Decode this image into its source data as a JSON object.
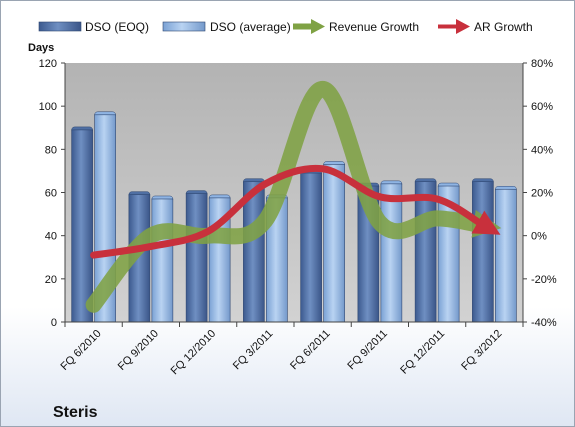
{
  "chart_data": {
    "type": "bar",
    "company": "Steris",
    "ylabel": "Days",
    "categories": [
      "FQ 6/2010",
      "FQ 9/2010",
      "FQ 12/2010",
      "FQ 3/2011",
      "FQ 6/2011",
      "FQ 9/2011",
      "FQ 12/2011",
      "FQ 3/2012"
    ],
    "ylim": [
      0,
      120
    ],
    "yticks": [
      0,
      20,
      40,
      60,
      80,
      100,
      120
    ],
    "y2lim": [
      -40,
      80
    ],
    "y2ticks": [
      "-40%",
      "-20%",
      "0%",
      "20%",
      "40%",
      "60%",
      "80%"
    ],
    "bar_series": [
      {
        "name": "DSO (EOQ)",
        "color": "#4f6fa3",
        "values": [
          89,
          59,
          59.5,
          65,
          69,
          63,
          65,
          65
        ]
      },
      {
        "name": "DSO (average)",
        "color": "#8fb4e3",
        "values": [
          96,
          57,
          57.5,
          57.5,
          73,
          64,
          63,
          61.5
        ]
      }
    ],
    "line_series": [
      {
        "name": "Revenue Growth",
        "color": "#7fa244",
        "values": [
          -32,
          0,
          0,
          7,
          68,
          6,
          8,
          4
        ]
      },
      {
        "name": "AR Growth",
        "color": "#c8303c",
        "values": [
          -9,
          -5,
          2,
          24,
          31,
          18,
          17,
          2
        ]
      }
    ],
    "grid": false,
    "legend": "top"
  }
}
